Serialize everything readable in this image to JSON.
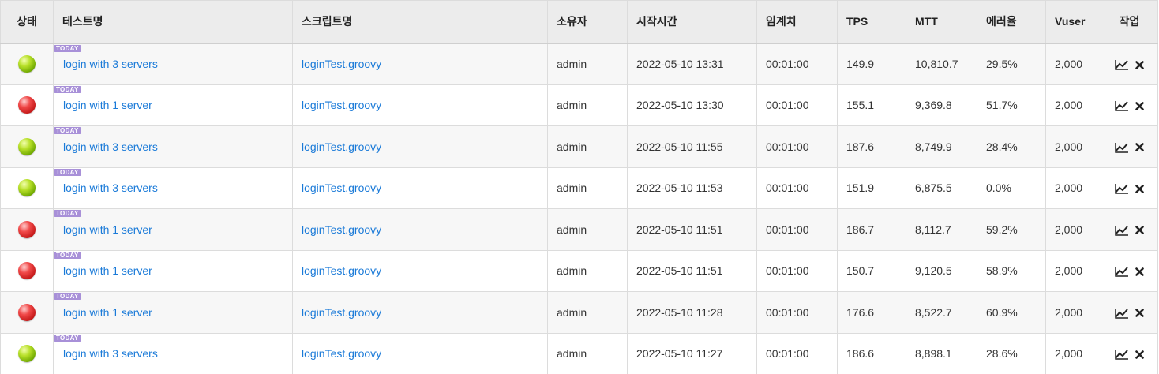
{
  "headers": [
    "상태",
    "테스트명",
    "스크립트명",
    "소유자",
    "시작시간",
    "임계치",
    "TPS",
    "MTT",
    "에러율",
    "Vuser",
    "작업"
  ],
  "today_badge": "TODAY",
  "rows": [
    {
      "status": "green",
      "test_name": "login with 3 servers",
      "script": "loginTest.groovy",
      "owner": "admin",
      "start_time": "2022-05-10 13:31",
      "threshold": "00:01:00",
      "tps": "149.9",
      "mtt": "10,810.7",
      "error_rate": "29.5%",
      "vuser": "2,000"
    },
    {
      "status": "red",
      "test_name": "login with 1 server",
      "script": "loginTest.groovy",
      "owner": "admin",
      "start_time": "2022-05-10 13:30",
      "threshold": "00:01:00",
      "tps": "155.1",
      "mtt": "9,369.8",
      "error_rate": "51.7%",
      "vuser": "2,000"
    },
    {
      "status": "green",
      "test_name": "login with 3 servers",
      "script": "loginTest.groovy",
      "owner": "admin",
      "start_time": "2022-05-10 11:55",
      "threshold": "00:01:00",
      "tps": "187.6",
      "mtt": "8,749.9",
      "error_rate": "28.4%",
      "vuser": "2,000"
    },
    {
      "status": "green",
      "test_name": "login with 3 servers",
      "script": "loginTest.groovy",
      "owner": "admin",
      "start_time": "2022-05-10 11:53",
      "threshold": "00:01:00",
      "tps": "151.9",
      "mtt": "6,875.5",
      "error_rate": "0.0%",
      "vuser": "2,000"
    },
    {
      "status": "red",
      "test_name": "login with 1 server",
      "script": "loginTest.groovy",
      "owner": "admin",
      "start_time": "2022-05-10 11:51",
      "threshold": "00:01:00",
      "tps": "186.7",
      "mtt": "8,112.7",
      "error_rate": "59.2%",
      "vuser": "2,000"
    },
    {
      "status": "red",
      "test_name": "login with 1 server",
      "script": "loginTest.groovy",
      "owner": "admin",
      "start_time": "2022-05-10 11:51",
      "threshold": "00:01:00",
      "tps": "150.7",
      "mtt": "9,120.5",
      "error_rate": "58.9%",
      "vuser": "2,000"
    },
    {
      "status": "red",
      "test_name": "login with 1 server",
      "script": "loginTest.groovy",
      "owner": "admin",
      "start_time": "2022-05-10 11:28",
      "threshold": "00:01:00",
      "tps": "176.6",
      "mtt": "8,522.7",
      "error_rate": "60.9%",
      "vuser": "2,000"
    },
    {
      "status": "green",
      "test_name": "login with 3 servers",
      "script": "loginTest.groovy",
      "owner": "admin",
      "start_time": "2022-05-10 11:27",
      "threshold": "00:01:00",
      "tps": "186.6",
      "mtt": "8,898.1",
      "error_rate": "28.6%",
      "vuser": "2,000"
    }
  ],
  "icons": {
    "chart": "line-chart-icon",
    "delete": "close-icon"
  },
  "colors": {
    "link": "#1a7ad8",
    "badge": "#a890d8",
    "header_bg": "#ececec"
  }
}
